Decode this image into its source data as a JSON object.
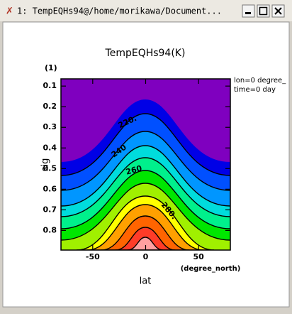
{
  "window": {
    "title": "1: TempEQHs94@/home/morikawa/Document..."
  },
  "plot": {
    "title": "TempEQHs94(K)",
    "panel": "(1)",
    "info": [
      "lon=0 degree_",
      "time=0 day"
    ],
    "xlabel": "lat",
    "xunits": "(degree_north)",
    "ylabel": "sig",
    "xlim": [
      -80,
      80
    ],
    "ylim": [
      0.065,
      0.895
    ],
    "xticks": [
      -50,
      0,
      50
    ],
    "yticks": [
      0.1,
      0.2,
      0.3,
      0.4,
      0.5,
      0.6,
      0.7,
      0.8
    ],
    "contour_labels": [
      "220.",
      "240",
      "260",
      "280."
    ]
  }
}
